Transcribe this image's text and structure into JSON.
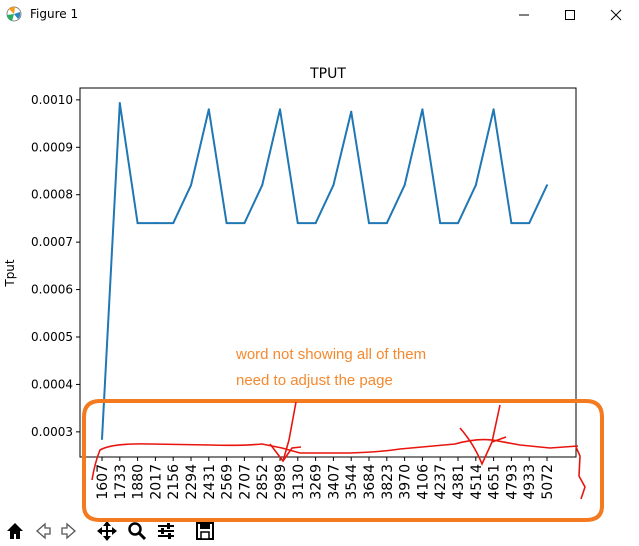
{
  "window": {
    "title": "Figure 1",
    "icon": "matplotlib-logo-icon"
  },
  "window_controls": [
    "minimize-icon",
    "maximize-icon",
    "close-icon"
  ],
  "chart_data": {
    "type": "line",
    "title": "TPUT",
    "xlabel": "",
    "ylabel": "Tput",
    "categories": [
      "1607",
      "1733",
      "1880",
      "2017",
      "2156",
      "2294",
      "2431",
      "2569",
      "2707",
      "2852",
      "2989",
      "3130",
      "3269",
      "3407",
      "3544",
      "3684",
      "3823",
      "3970",
      "4106",
      "4237",
      "4381",
      "4514",
      "4651",
      "4793",
      "4933",
      "5072"
    ],
    "yticks": [
      "0.0003",
      "0.0004",
      "0.0005",
      "0.0006",
      "0.0007",
      "0.0008",
      "0.0009",
      "0.0010"
    ],
    "ylim": [
      0.000247,
      0.001025
    ],
    "series": [
      {
        "color": "#1f77b4",
        "values": [
          0.000285,
          0.000993,
          0.00074,
          0.00074,
          0.00074,
          0.00082,
          0.00098,
          0.00074,
          0.00074,
          0.00082,
          0.00098,
          0.00074,
          0.00074,
          0.00082,
          0.000975,
          0.00074,
          0.00074,
          0.00082,
          0.00098,
          0.00074,
          0.00074,
          0.00082,
          0.00098,
          0.00074,
          0.00074,
          0.00082
        ]
      }
    ],
    "grid": false
  },
  "annotation": {
    "line1": "word not showing all of them",
    "line2": "need to adjust the page",
    "color": "#f5892f",
    "ink_color": "#e8150f"
  },
  "toolbar": {
    "buttons": [
      "home-icon",
      "back-icon",
      "forward-icon",
      "pan-icon",
      "zoom-icon",
      "configure-subplots-icon",
      "save-icon"
    ]
  }
}
